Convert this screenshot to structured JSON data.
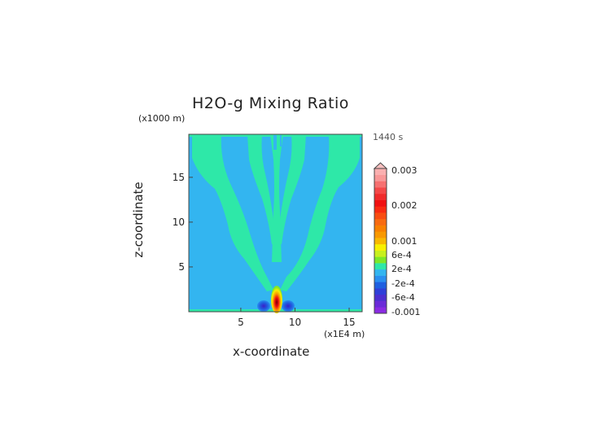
{
  "chart_data": {
    "type": "heatmap",
    "title": "H2O-g Mixing Ratio",
    "time_label": "1440 s",
    "xlabel": "x-coordinate",
    "ylabel": "z-coordinate",
    "x_unit": "(x1E4 m)",
    "y_unit": "(x1000 m)",
    "xlim": [
      0.2,
      16.2
    ],
    "ylim": [
      0,
      19.8
    ],
    "x_ticks": [
      5,
      10,
      15
    ],
    "y_ticks": [
      5,
      10,
      15
    ],
    "grid": false,
    "colorbar": {
      "position": "right",
      "labels": [
        "0.003",
        "0.002",
        "0.001",
        "6e-4",
        "2e-4",
        "-2e-4",
        "-6e-4",
        "-0.001"
      ],
      "levels": [
        {
          "color": "#8a2be2"
        },
        {
          "color": "#6a2bd8"
        },
        {
          "color": "#4c2fd0"
        },
        {
          "color": "#2f3fd8"
        },
        {
          "color": "#1f5fe0"
        },
        {
          "color": "#2a8ff0"
        },
        {
          "color": "#33b5f0"
        },
        {
          "color": "#2ee8a8"
        },
        {
          "color": "#7ee828"
        },
        {
          "color": "#c8f01e"
        },
        {
          "color": "#f8f000"
        },
        {
          "color": "#f8b800"
        },
        {
          "color": "#f89800"
        },
        {
          "color": "#f88000"
        },
        {
          "color": "#f86a10"
        },
        {
          "color": "#f84c10"
        },
        {
          "color": "#f82a10"
        },
        {
          "color": "#f01010"
        },
        {
          "color": "#f02a2a"
        },
        {
          "color": "#f44848"
        },
        {
          "color": "#f67070"
        },
        {
          "color": "#f89898"
        },
        {
          "color": "#fab0b0"
        }
      ]
    },
    "field": {
      "background_value": "-2e-4 to 2e-4",
      "background_color": "#33b5f0",
      "plume_color": "#2ee8a8",
      "description_free": true
    }
  }
}
